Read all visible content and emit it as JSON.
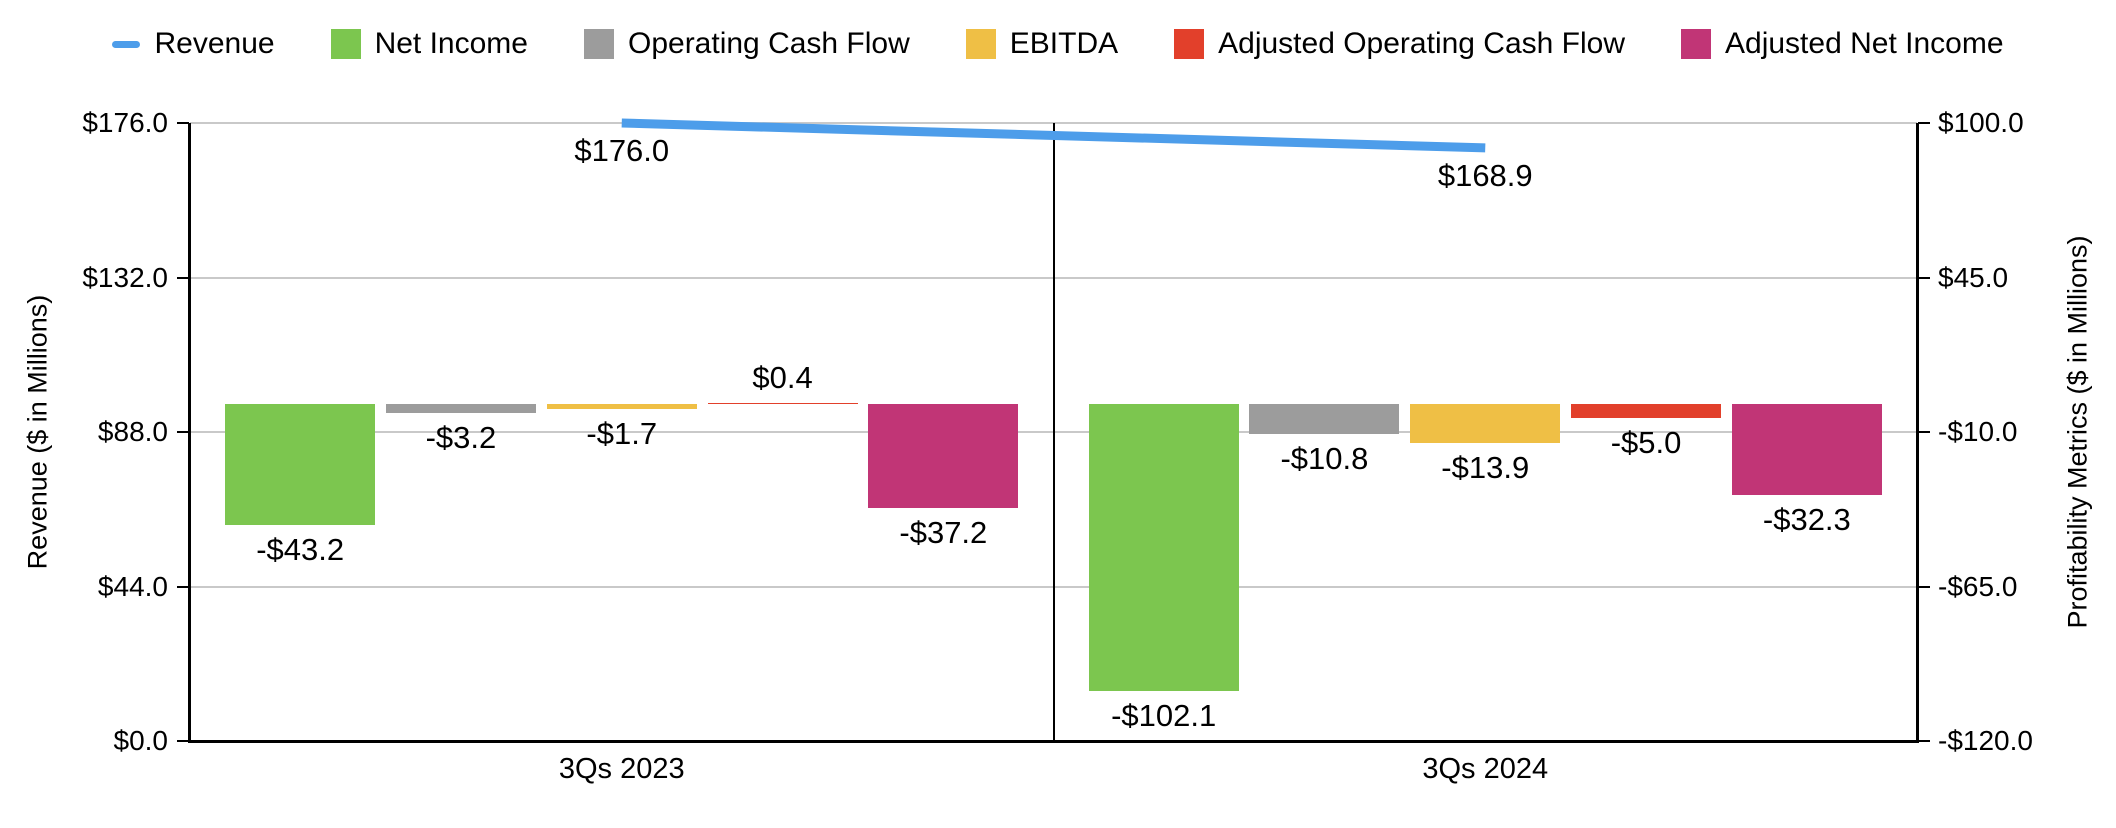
{
  "chart_data": {
    "type": "combo-line-bar",
    "categories": [
      "3Qs 2023",
      "3Qs 2024"
    ],
    "left_axis": {
      "title": "Revenue ($ in Millions)",
      "min": 0,
      "max": 176,
      "ticks": [
        "$176.0",
        "$132.0",
        "$88.0",
        "$44.0",
        "$0.0"
      ]
    },
    "right_axis": {
      "title": "Profitability Metrics ($ in Millions)",
      "min": -120,
      "max": 100,
      "ticks": [
        "$100.0",
        "$45.0",
        "-$10.0",
        "-$65.0",
        "-$120.0"
      ]
    },
    "line_series": {
      "name": "Revenue",
      "axis": "left",
      "color": "#4D9DEA",
      "values": [
        176.0,
        168.9
      ],
      "labels": [
        "$176.0",
        "$168.9"
      ]
    },
    "bar_series": [
      {
        "name": "Net Income",
        "axis": "right",
        "color": "#7CC64F",
        "values": [
          -43.2,
          -102.1
        ],
        "labels": [
          "-$43.2",
          "-$102.1"
        ]
      },
      {
        "name": "Operating Cash Flow",
        "axis": "right",
        "color": "#9C9C9C",
        "values": [
          -3.2,
          -10.8
        ],
        "labels": [
          "-$3.2",
          "-$10.8"
        ]
      },
      {
        "name": "EBITDA",
        "axis": "right",
        "color": "#EFBF45",
        "values": [
          -1.7,
          -13.9
        ],
        "labels": [
          "-$1.7",
          "-$13.9"
        ]
      },
      {
        "name": "Adjusted Operating Cash Flow",
        "axis": "right",
        "color": "#E2402B",
        "values": [
          0.4,
          -5.0
        ],
        "labels": [
          "$0.4",
          "-$5.0"
        ]
      },
      {
        "name": "Adjusted Net Income",
        "axis": "right",
        "color": "#C13576",
        "values": [
          -37.2,
          -32.3
        ],
        "labels": [
          "-$37.2",
          "-$32.3"
        ]
      }
    ],
    "grid": true,
    "legend_position": "top",
    "colors": {
      "gridline": "#C9C9C9",
      "axis_line": "#000000",
      "background": "#FFFFFF",
      "text": "#000000"
    }
  }
}
